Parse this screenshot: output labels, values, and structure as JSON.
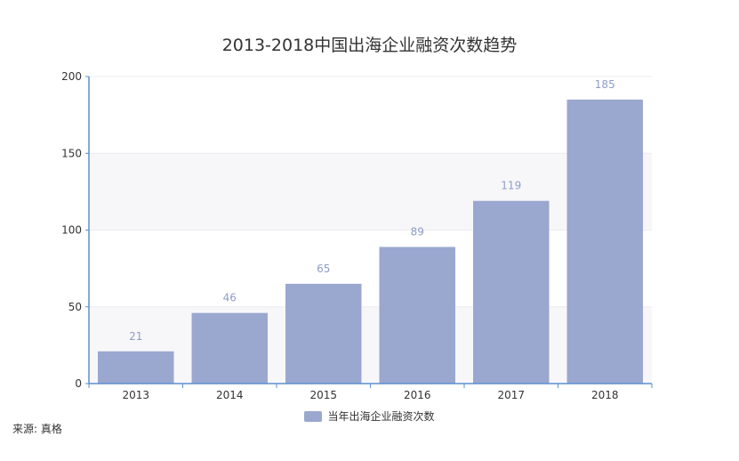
{
  "chart_data": {
    "type": "bar",
    "title": "2013-2018中国出海企业融资次数趋势",
    "categories": [
      "2013",
      "2014",
      "2015",
      "2016",
      "2017",
      "2018"
    ],
    "series": [
      {
        "name": "当年出海企业融资次数",
        "values": [
          21,
          46,
          65,
          89,
          119,
          185
        ],
        "color": "#9aa7cf"
      }
    ],
    "ylim": [
      0,
      200
    ],
    "yticks": [
      0,
      50,
      100,
      150,
      200
    ],
    "xlabel": "",
    "ylabel": "",
    "grid": true,
    "legend": "bottom-center",
    "source": "来源: 真格"
  },
  "colors": {
    "bar": "#9aa7cf",
    "axis": "#5b8fd1",
    "label": "#8e9cc8",
    "band_light": "#f7f7f9",
    "band_white": "#ffffff"
  }
}
